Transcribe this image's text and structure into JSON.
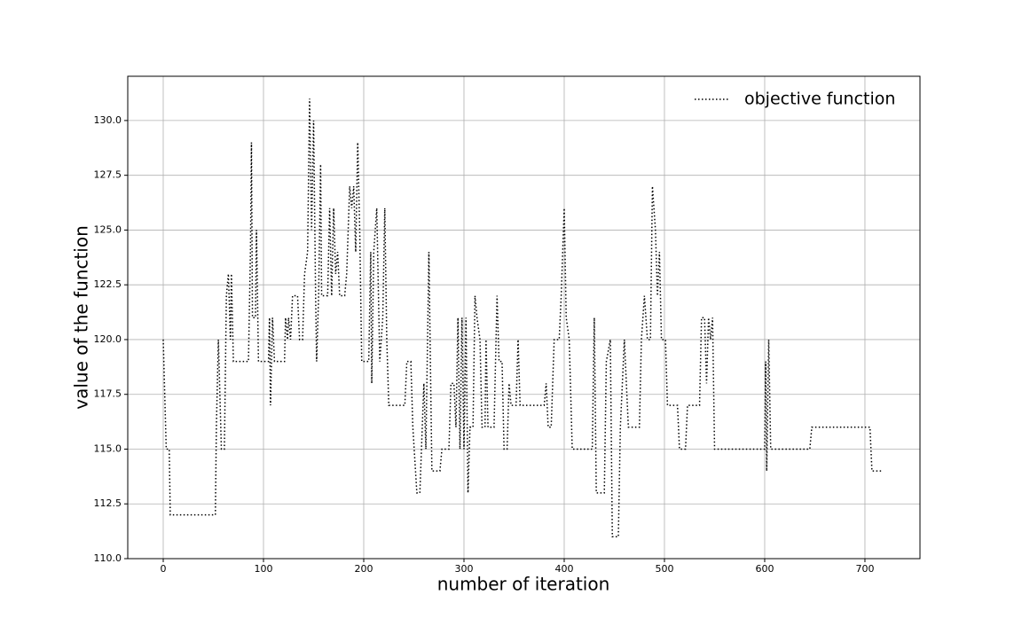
{
  "chart_data": {
    "type": "line",
    "xlabel": "number of iteration",
    "ylabel": "value of the function",
    "xlim": [
      -35.4,
      754.9
    ],
    "ylim": [
      110,
      132.02
    ],
    "xticks": [
      0,
      100,
      200,
      300,
      400,
      500,
      600,
      700
    ],
    "yticks": [
      {
        "value": 110,
        "label": "110.0"
      },
      {
        "value": 112.5,
        "label": "112.5"
      },
      {
        "value": 115,
        "label": "115.0"
      },
      {
        "value": 117.5,
        "label": "117.5"
      },
      {
        "value": 120,
        "label": "120.0"
      },
      {
        "value": 122.5,
        "label": "122.5"
      },
      {
        "value": 125,
        "label": "125.0"
      },
      {
        "value": 127.5,
        "label": "127.5"
      },
      {
        "value": 130,
        "label": "130.0"
      }
    ],
    "grid": true,
    "legend": "upper right",
    "series": [
      {
        "name": "objective function",
        "color": "#000000",
        "x": [
          0,
          3,
          6,
          7,
          52,
          53,
          55,
          58,
          61,
          63,
          65,
          67,
          68,
          70,
          85,
          87,
          88,
          89,
          92,
          93,
          95,
          105,
          106,
          107,
          109,
          111,
          121,
          122,
          124,
          125,
          127,
          129,
          134,
          136,
          139,
          141,
          144,
          146,
          148,
          150,
          152,
          153,
          155,
          157,
          158,
          164,
          166,
          168,
          170,
          172,
          174,
          176,
          181,
          183,
          186,
          188,
          190,
          192,
          194,
          196,
          198,
          205,
          207,
          208,
          210,
          213,
          216,
          219,
          221,
          223,
          225,
          241,
          243,
          247,
          249,
          253,
          256,
          260,
          262,
          265,
          268,
          276,
          278,
          285,
          287,
          290,
          292,
          294,
          296,
          298,
          300,
          302,
          304,
          306,
          309,
          311,
          313,
          316,
          318,
          321,
          322,
          324,
          330,
          333,
          335,
          338,
          340,
          343,
          345,
          347,
          352,
          354,
          356,
          380,
          382,
          384,
          387,
          390,
          395,
          397,
          400,
          402,
          405,
          408,
          428,
          430,
          432,
          440,
          442,
          446,
          448,
          454,
          456,
          460,
          462,
          464,
          475,
          477,
          480,
          483,
          486,
          488,
          491,
          493,
          495,
          497,
          501,
          503,
          513,
          515,
          521,
          523,
          535,
          537,
          540,
          542,
          544,
          546,
          548,
          550,
          600,
          601,
          602,
          604,
          606,
          645,
          647,
          705,
          707,
          718
        ],
        "values": [
          120,
          115,
          115,
          112,
          112,
          116,
          120,
          115,
          115,
          122,
          123,
          120,
          123,
          119,
          119,
          124,
          129,
          121,
          121,
          125,
          119,
          119,
          121,
          117,
          121,
          119,
          119,
          121,
          120,
          121,
          120,
          122,
          122,
          120,
          120,
          123,
          124,
          131,
          125,
          130,
          122,
          119,
          122,
          128,
          122,
          122,
          126,
          122,
          126,
          123,
          124,
          122,
          122,
          123,
          127,
          126,
          127,
          124,
          129,
          125,
          119,
          119,
          124,
          118,
          124,
          126,
          119,
          121,
          126,
          120,
          117,
          117,
          119,
          119,
          116,
          113,
          113,
          118,
          115,
          124,
          114,
          114,
          115,
          115,
          118,
          118,
          116,
          121,
          115,
          121,
          115,
          121,
          113,
          116,
          116,
          122,
          121,
          120,
          116,
          116,
          120,
          116,
          116,
          122,
          119,
          119,
          115,
          115,
          118,
          117,
          117,
          120,
          117,
          117,
          118,
          116,
          116,
          120,
          120,
          122,
          126,
          121,
          120,
          115,
          115,
          121,
          113,
          113,
          119,
          120,
          111,
          111,
          116,
          120,
          118,
          116,
          116,
          120,
          122,
          120,
          120,
          127,
          125,
          122,
          124,
          120,
          120,
          117,
          117,
          115,
          115,
          117,
          117,
          121,
          121,
          118,
          121,
          120,
          121,
          115,
          115,
          119,
          114,
          120,
          115,
          115,
          116,
          116,
          114,
          114
        ]
      }
    ]
  }
}
